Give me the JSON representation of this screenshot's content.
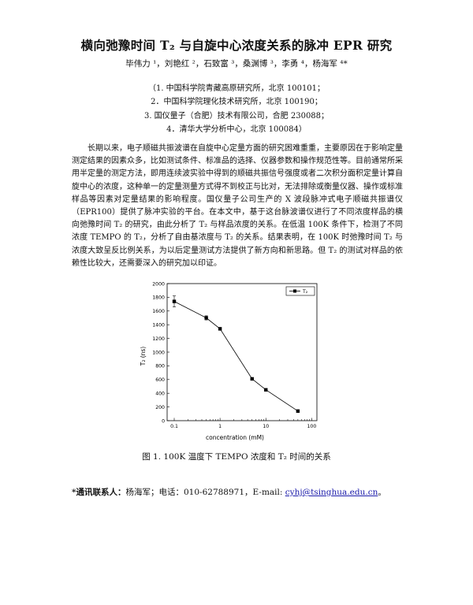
{
  "title": "横向弛豫时间 T₂ 与自旋中心浓度关系的脉冲 EPR 研究",
  "authors": "毕伟力 ¹，刘艳红 ²，石致富 ³，桑渊博 ³，李勇 ⁴，杨海军 ⁴*",
  "affiliations": [
    "（1. 中国科学院青藏高原研究所，北京 100101；",
    "2．中国科学院理化技术研究所，北京 100190；",
    "3. 国仪量子（合肥）技术有限公司，合肥 230088；",
    "4．清华大学分析中心，北京 100084）"
  ],
  "abstract": "长期以来，电子顺磁共振波谱在自旋中心定量方面的研究困难重重，主要原因在于影响定量测定结果的因素众多，比如测试条件、标准品的选择、仪器参数和操作规范性等。目前通常所采用半定量的测定方法，即用连续波实验中得到的顺磁共振信号强度或者二次积分面积定量计算自旋中心的浓度，这种单一的定量测量方式得不到校正与比对，无法排除或衡量仪器、操作或标准样品等因素对定量结果的影响程度。国仪量子公司生产的 X 波段脉冲式电子顺磁共振谱仪（EPR100）提供了脉冲实验的平台。在本文中，基于这台脉波谱仪进行了不同浓度样品的横向弛豫时间 T₂ 的研究，由此分析了 T₂ 与样品浓度的关系。在低温 100K 条件下，检测了不同浓度 TEMPO 的 T₂，分析了自由基浓度与 T₂ 的关系。结果表明，在 100K 时弛豫时间 T₂ 与浓度大致呈反比例关系，为以后定量测试方法提供了新方向和新思路。但 T₂ 的测试对样品的依赖性比较大，还需要深入的研究加以印证。",
  "caption": "图 1. 100K 温度下 TEMPO 浓度和 T₂ 时间的关系",
  "contact": {
    "label": "*通讯联系人：",
    "text": "杨海军；电话：010-62788971，E-mail: ",
    "email": "cyhj@tsinghua.edu.cn",
    "tail": "。"
  },
  "chart_data": {
    "type": "line",
    "xlabel": "concentration (mM)",
    "ylabel": "T₂ (ns)",
    "xscale": "log",
    "xlim": [
      0.07,
      130
    ],
    "ylim": [
      0,
      2000
    ],
    "xticks": [
      0.1,
      1,
      10,
      100
    ],
    "xtick_labels": [
      "0.1",
      "1",
      "10",
      "100"
    ],
    "yticks": [
      0,
      200,
      400,
      600,
      800,
      1000,
      1200,
      1400,
      1600,
      1800,
      2000
    ],
    "legend": "top-right",
    "grid": false,
    "series": [
      {
        "name": "T₂",
        "x": [
          0.1,
          0.5,
          1,
          5,
          10,
          50
        ],
        "y": [
          1740,
          1500,
          1340,
          610,
          450,
          140
        ],
        "err": [
          80,
          30,
          20,
          15,
          15,
          10
        ]
      }
    ]
  }
}
